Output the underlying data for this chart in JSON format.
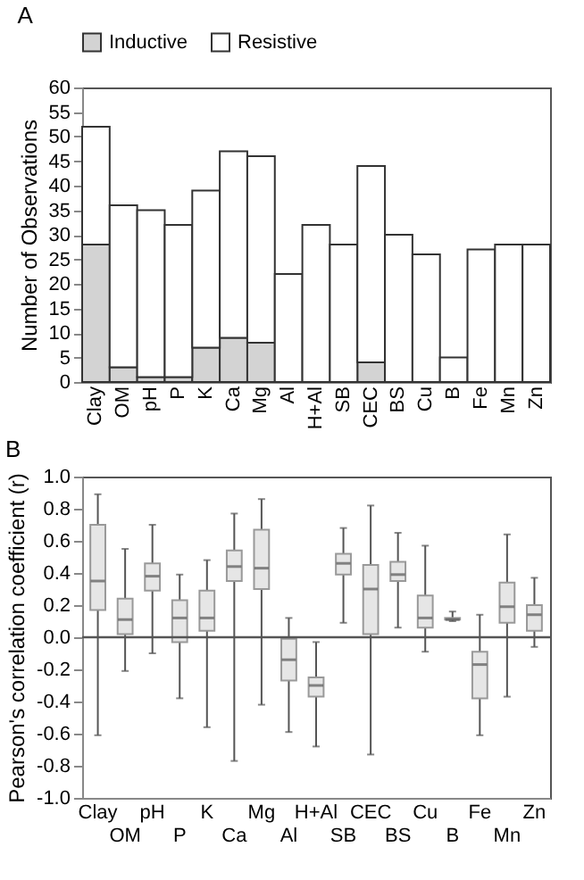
{
  "chart_data": [
    {
      "type": "bar",
      "title": "A",
      "ylabel": "Number of Observations",
      "stacked": true,
      "legend": "top",
      "grid": false,
      "categories": [
        "Clay",
        "OM",
        "pH",
        "P",
        "K",
        "Ca",
        "Mg",
        "Al",
        "H+Al",
        "SB",
        "CEC",
        "BS",
        "Cu",
        "B",
        "Fe",
        "Mn",
        "Zn"
      ],
      "series": [
        {
          "name": "Inductive",
          "color": "#d3d3d3",
          "values": [
            28,
            3,
            1,
            1,
            7,
            9,
            8,
            0,
            0,
            0,
            4,
            0,
            0,
            0,
            0,
            0,
            0
          ]
        },
        {
          "name": "Resistive",
          "color": "#ffffff",
          "values": [
            24,
            33,
            34,
            31,
            32,
            38,
            38,
            22,
            32,
            28,
            40,
            30,
            26,
            5,
            27,
            28,
            28
          ]
        }
      ],
      "ylim": [
        0,
        60
      ],
      "yticks": [
        0,
        5,
        10,
        15,
        20,
        25,
        30,
        35,
        40,
        45,
        50,
        55,
        60
      ]
    },
    {
      "type": "box",
      "title": "B",
      "ylabel": "Pearson's correlation coefficient (r)",
      "grid": false,
      "categories": [
        "Clay",
        "OM",
        "pH",
        "P",
        "K",
        "Ca",
        "Mg",
        "Al",
        "H+Al",
        "SB",
        "CEC",
        "BS",
        "Cu",
        "B",
        "Fe",
        "Mn",
        "Zn"
      ],
      "boxes": [
        {
          "low": -0.61,
          "q1": 0.17,
          "median": 0.35,
          "q3": 0.7,
          "high": 0.89
        },
        {
          "low": -0.21,
          "q1": 0.02,
          "median": 0.11,
          "q3": 0.24,
          "high": 0.55
        },
        {
          "low": -0.1,
          "q1": 0.29,
          "median": 0.38,
          "q3": 0.46,
          "high": 0.7
        },
        {
          "low": -0.38,
          "q1": -0.03,
          "median": 0.12,
          "q3": 0.23,
          "high": 0.39
        },
        {
          "low": -0.56,
          "q1": 0.04,
          "median": 0.12,
          "q3": 0.29,
          "high": 0.48
        },
        {
          "low": -0.77,
          "q1": 0.35,
          "median": 0.44,
          "q3": 0.54,
          "high": 0.77
        },
        {
          "low": -0.42,
          "q1": 0.3,
          "median": 0.43,
          "q3": 0.67,
          "high": 0.86
        },
        {
          "low": -0.59,
          "q1": -0.27,
          "median": -0.14,
          "q3": -0.01,
          "high": 0.12
        },
        {
          "low": -0.68,
          "q1": -0.37,
          "median": -0.3,
          "q3": -0.25,
          "high": -0.03
        },
        {
          "low": 0.09,
          "q1": 0.39,
          "median": 0.46,
          "q3": 0.52,
          "high": 0.68
        },
        {
          "low": -0.73,
          "q1": 0.02,
          "median": 0.3,
          "q3": 0.45,
          "high": 0.82
        },
        {
          "low": 0.06,
          "q1": 0.35,
          "median": 0.39,
          "q3": 0.47,
          "high": 0.65
        },
        {
          "low": -0.09,
          "q1": 0.06,
          "median": 0.12,
          "q3": 0.26,
          "high": 0.57
        },
        {
          "low": 0.1,
          "q1": 0.11,
          "median": 0.11,
          "q3": 0.12,
          "high": 0.16
        },
        {
          "low": -0.61,
          "q1": -0.38,
          "median": -0.17,
          "q3": -0.09,
          "high": 0.14
        },
        {
          "low": -0.37,
          "q1": 0.09,
          "median": 0.19,
          "q3": 0.34,
          "high": 0.64
        },
        {
          "low": -0.06,
          "q1": 0.04,
          "median": 0.14,
          "q3": 0.2,
          "high": 0.37
        }
      ],
      "color": "#e6e6e6",
      "ref_lines": [
        {
          "axis": "y",
          "value": 0,
          "color": "#555555"
        }
      ],
      "ylim": [
        -1,
        1
      ],
      "yticks": [
        {
          "value": -1,
          "label": "-1.0"
        },
        {
          "value": -0.8,
          "label": "-0.8"
        },
        {
          "value": -0.6,
          "label": "-0.6"
        },
        {
          "value": -0.4,
          "label": "-0.4"
        },
        {
          "value": -0.2,
          "label": "-0.2"
        },
        {
          "value": 0,
          "label": "0.0"
        },
        {
          "value": 0.2,
          "label": "0.2"
        },
        {
          "value": 0.4,
          "label": "0.4"
        },
        {
          "value": 0.6,
          "label": "0.6"
        },
        {
          "value": 0.8,
          "label": "0.8"
        },
        {
          "value": 1,
          "label": "1.0"
        }
      ]
    }
  ]
}
